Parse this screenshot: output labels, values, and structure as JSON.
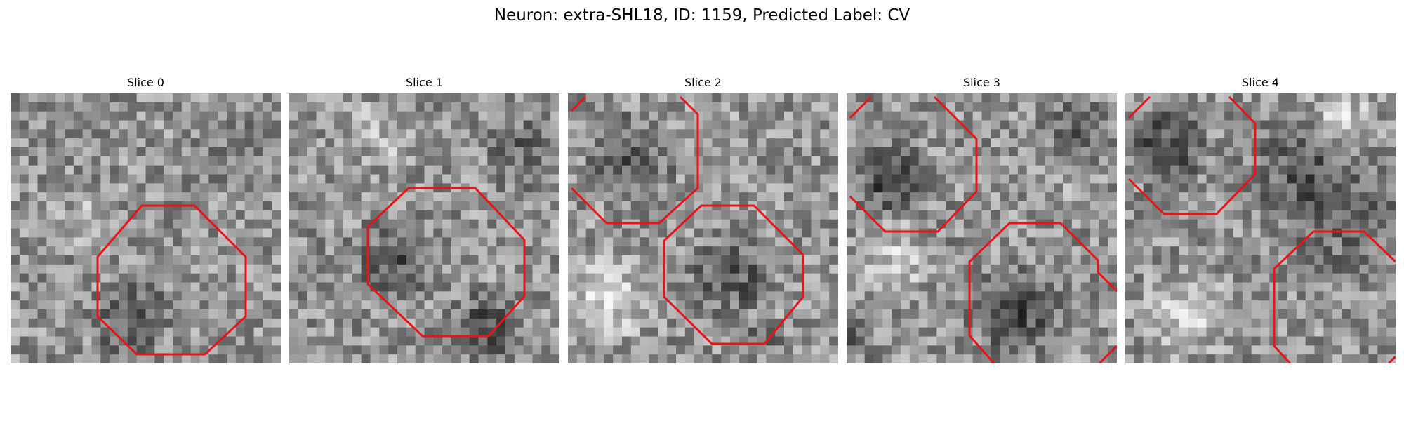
{
  "figure": {
    "title": "Neuron: extra-SHL18, ID: 1159, Predicted Label: CV"
  },
  "slices": [
    {
      "title": "Slice 0"
    },
    {
      "title": "Slice 1"
    },
    {
      "title": "Slice 2"
    },
    {
      "title": "Slice 3"
    },
    {
      "title": "Slice 4"
    }
  ],
  "colors": {
    "contour": "#e8141a",
    "background": "#ffffff"
  }
}
